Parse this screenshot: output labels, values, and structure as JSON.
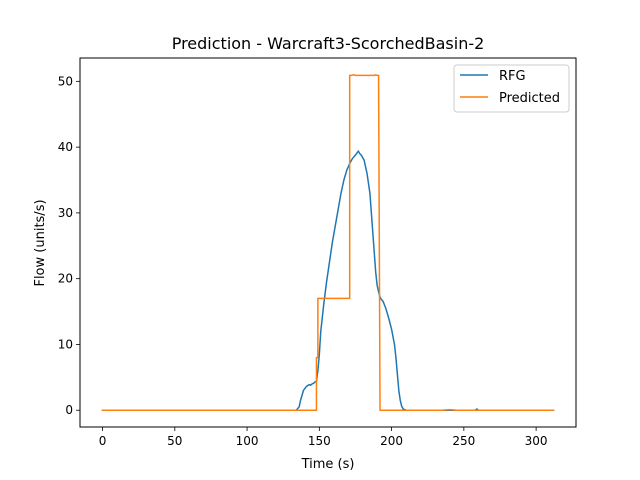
{
  "chart_data": {
    "type": "line",
    "title": "Prediction - Warcraft3-ScorchedBasin-2",
    "xlabel": "Time (s)",
    "ylabel": "Flow (units/s)",
    "xlim": [
      -15.6,
      327.6
    ],
    "ylim": [
      -2.55,
      53.55
    ],
    "xticks": [
      0,
      50,
      100,
      150,
      200,
      250,
      300
    ],
    "yticks": [
      0,
      10,
      20,
      30,
      40,
      50
    ],
    "grid": false,
    "legend_position": "top-right",
    "series": [
      {
        "name": "RFG",
        "color": "#1f77b4",
        "x": [
          0,
          134,
          136,
          137,
          139,
          141,
          143,
          144,
          145,
          146,
          147,
          148,
          149,
          150,
          151,
          153,
          155,
          157,
          159,
          161,
          163,
          165,
          167,
          169,
          171,
          173,
          175,
          177,
          178,
          179,
          181,
          183,
          185,
          186,
          187,
          188,
          189,
          190,
          191,
          192,
          193,
          194,
          196,
          198,
          200,
          202,
          203,
          204,
          205,
          206,
          207,
          208,
          209,
          210,
          211,
          212,
          214,
          220,
          230,
          240,
          250,
          258,
          259,
          260,
          270,
          280,
          290,
          300,
          312
        ],
        "y": [
          0,
          0,
          0.5,
          1.5,
          3.0,
          3.6,
          3.9,
          3.8,
          4.0,
          4.1,
          4.3,
          4.4,
          6.0,
          8.5,
          12.0,
          16.0,
          19.5,
          22.5,
          25.5,
          28.0,
          30.5,
          33.0,
          35.0,
          36.5,
          37.5,
          38.3,
          38.8,
          39.4,
          39.0,
          38.8,
          38.0,
          36.0,
          33.0,
          30.0,
          27.0,
          24.0,
          21.0,
          19.0,
          18.0,
          17.2,
          16.8,
          16.6,
          15.5,
          14.0,
          12.3,
          10.0,
          8.0,
          5.5,
          3.0,
          1.5,
          0.6,
          0.2,
          0.1,
          0,
          0,
          0,
          0,
          0,
          0,
          0,
          0,
          0,
          0.2,
          0,
          0,
          0,
          0,
          0,
          0
        ]
      },
      {
        "name": "Predicted",
        "color": "#ff7f0e",
        "x": [
          0,
          147,
          148,
          148,
          149,
          149,
          150,
          170,
          170,
          171,
          171,
          172,
          172,
          174,
          175,
          188,
          189,
          190,
          191,
          191,
          192,
          193,
          235,
          240,
          245,
          260,
          312
        ],
        "y": [
          0,
          0,
          0,
          8.0,
          8.0,
          17.0,
          17.0,
          17.0,
          17.0,
          17.0,
          50.9,
          50.9,
          50.9,
          51.0,
          50.9,
          50.9,
          51.0,
          50.9,
          50.9,
          50.9,
          0,
          0,
          0,
          0.1,
          0,
          0,
          0
        ]
      }
    ]
  }
}
